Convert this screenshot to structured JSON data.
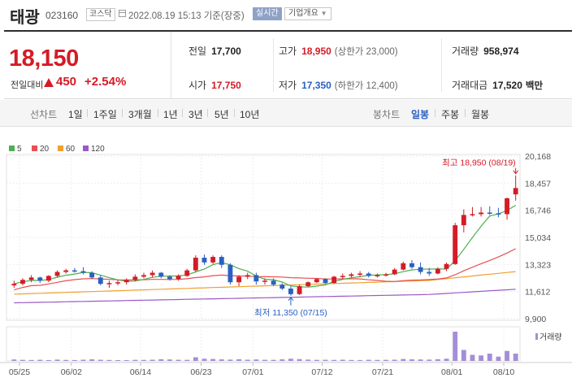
{
  "header": {
    "name": "태광",
    "code": "023160",
    "market": "코스닥",
    "datetime": "2022.08.19 15:13 기준(장중)",
    "realtime": "실시간",
    "overview": "기업개요"
  },
  "quote": {
    "price": "18,150",
    "change_label": "전일대비",
    "change": "450",
    "change_pct": "+2.54%",
    "prev_close_label": "전일",
    "prev_close": "17,700",
    "high_label": "고가",
    "high": "18,950",
    "upper_limit": "(상한가 23,000)",
    "volume_label": "거래량",
    "volume": "958,974",
    "open_label": "시가",
    "open": "17,750",
    "low_label": "저가",
    "low": "17,350",
    "lower_limit": "(하한가 12,400)",
    "value_label": "거래대금",
    "value": "17,520",
    "value_unit": "백만"
  },
  "toolbar": {
    "line_chart": "선차트",
    "periods": [
      "1일",
      "1주일",
      "3개월",
      "1년",
      "3년",
      "5년",
      "10년"
    ],
    "candle_chart": "봉차트",
    "candle_periods": [
      "일봉",
      "주봉",
      "월봉"
    ],
    "candle_selected": "일봉"
  },
  "colors": {
    "up": "#d51b26",
    "down": "#2a60c3",
    "ma5": "#4caf50",
    "ma20": "#e85050",
    "ma60": "#f0a030",
    "ma120": "#9b59c6",
    "volume": "#a58ed6"
  },
  "chart_data": {
    "type": "candlestick",
    "legend": [
      "5",
      "20",
      "60",
      "120"
    ],
    "y_ticks": [
      "20,168",
      "18,457",
      "16,746",
      "15,034",
      "13,323",
      "11,612",
      "9,900"
    ],
    "ylim": [
      9900,
      20168
    ],
    "x_ticks": [
      "05/25",
      "06/02",
      "06/14",
      "06/23",
      "07/01",
      "07/12",
      "07/21",
      "08/01",
      "08/10"
    ],
    "high_note": "최고 18,950 (08/19)",
    "low_note": "최저 11,350 (07/15)",
    "volume_label": "거래량",
    "candles": [
      [
        12000,
        12300,
        11850,
        12100
      ],
      [
        12100,
        12450,
        12000,
        12350
      ],
      [
        12350,
        12650,
        12200,
        12500
      ],
      [
        12500,
        12550,
        12150,
        12300
      ],
      [
        12300,
        12650,
        12200,
        12600
      ],
      [
        12600,
        12950,
        12500,
        12850
      ],
      [
        12850,
        13050,
        12750,
        12950
      ],
      [
        12950,
        13100,
        12800,
        12900
      ],
      [
        12900,
        13150,
        12700,
        12800
      ],
      [
        12800,
        12900,
        12400,
        12500
      ],
      [
        12500,
        12650,
        12000,
        12100
      ],
      [
        12100,
        12300,
        11850,
        12150
      ],
      [
        12150,
        12350,
        12000,
        12200
      ],
      [
        12200,
        12450,
        12050,
        12350
      ],
      [
        12350,
        12700,
        12250,
        12550
      ],
      [
        12550,
        12800,
        12450,
        12650
      ],
      [
        12650,
        12950,
        12500,
        12800
      ],
      [
        12800,
        12850,
        12450,
        12550
      ],
      [
        12550,
        12650,
        12300,
        12400
      ],
      [
        12400,
        12700,
        12300,
        12600
      ],
      [
        12600,
        13050,
        12550,
        12950
      ],
      [
        12950,
        13900,
        12850,
        13750
      ],
      [
        13750,
        13950,
        13300,
        13450
      ],
      [
        13450,
        13900,
        13350,
        13800
      ],
      [
        13800,
        13900,
        13100,
        13300
      ],
      [
        13300,
        13400,
        12050,
        12200
      ],
      [
        12200,
        12650,
        11950,
        12550
      ],
      [
        12550,
        12800,
        12400,
        12650
      ],
      [
        12650,
        12800,
        12050,
        12250
      ],
      [
        12250,
        12450,
        12050,
        12300
      ],
      [
        12300,
        12450,
        11950,
        12050
      ],
      [
        12050,
        12150,
        11700,
        11800
      ],
      [
        11800,
        11950,
        11350,
        11450
      ],
      [
        11450,
        12050,
        11400,
        11950
      ],
      [
        11950,
        12250,
        11900,
        12200
      ],
      [
        12200,
        12450,
        12150,
        12400
      ],
      [
        12400,
        12450,
        12100,
        12150
      ],
      [
        12150,
        12600,
        12100,
        12550
      ],
      [
        12550,
        12750,
        12400,
        12600
      ],
      [
        12600,
        12800,
        12500,
        12700
      ],
      [
        12700,
        12900,
        12550,
        12750
      ],
      [
        12750,
        12850,
        12500,
        12600
      ],
      [
        12600,
        12750,
        12500,
        12650
      ],
      [
        12650,
        12800,
        12550,
        12700
      ],
      [
        12700,
        13100,
        12650,
        13000
      ],
      [
        13000,
        13500,
        12950,
        13400
      ],
      [
        13400,
        13600,
        13050,
        13150
      ],
      [
        13150,
        13450,
        12700,
        12850
      ],
      [
        12850,
        13100,
        12600,
        12750
      ],
      [
        12750,
        13150,
        12700,
        13050
      ],
      [
        13050,
        13450,
        12900,
        13350
      ],
      [
        13350,
        15950,
        13300,
        15800
      ],
      [
        15800,
        16800,
        15350,
        16450
      ],
      [
        16450,
        16950,
        16350,
        16500
      ],
      [
        16500,
        16950,
        16350,
        16600
      ],
      [
        16600,
        17000,
        16450,
        16550
      ],
      [
        16550,
        16900,
        16300,
        16500
      ],
      [
        16500,
        17550,
        16150,
        17500
      ],
      [
        17750,
        18950,
        17350,
        18150
      ]
    ],
    "volumes": [
      120,
      90,
      80,
      95,
      70,
      110,
      85,
      75,
      100,
      130,
      95,
      80,
      70,
      65,
      90,
      85,
      100,
      140,
      120,
      95,
      90,
      300,
      180,
      160,
      130,
      110,
      140,
      100,
      120,
      95,
      90,
      130,
      180,
      150,
      110,
      90,
      95,
      85,
      100,
      80,
      75,
      95,
      85,
      90,
      100,
      160,
      130,
      120,
      110,
      140,
      180,
      2400,
      900,
      500,
      450,
      600,
      350,
      820,
      600
    ]
  }
}
